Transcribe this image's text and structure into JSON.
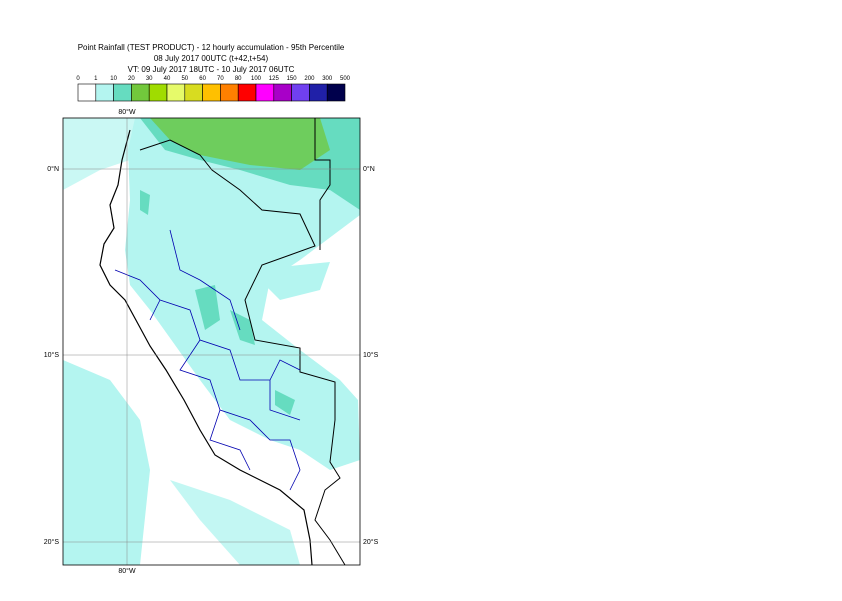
{
  "header": {
    "title": "Point Rainfall (TEST PRODUCT) - 12 hourly accumulation - 95th Percentile",
    "base_time": "08 July 2017 00UTC (t+42,t+54)",
    "valid_time": "VT: 09 July 2017 18UTC - 10 July 2017 06UTC"
  },
  "colorbar": {
    "labels": [
      0,
      1,
      10,
      20,
      30,
      40,
      50,
      60,
      70,
      80,
      100,
      125,
      150,
      200,
      300,
      500
    ],
    "colors": [
      "#ffffff",
      "#b4f5f0",
      "#66dcc0",
      "#72c83c",
      "#a0dc00",
      "#e6fa6a",
      "#d8dc20",
      "#ffc000",
      "#ff8000",
      "#ff0000",
      "#ff00ff",
      "#a800c8",
      "#7040f0",
      "#2020a8",
      "#00004c"
    ]
  },
  "map": {
    "lon_label": "80°W",
    "lat_labels": [
      "0°N",
      "10°S",
      "20°S"
    ]
  }
}
